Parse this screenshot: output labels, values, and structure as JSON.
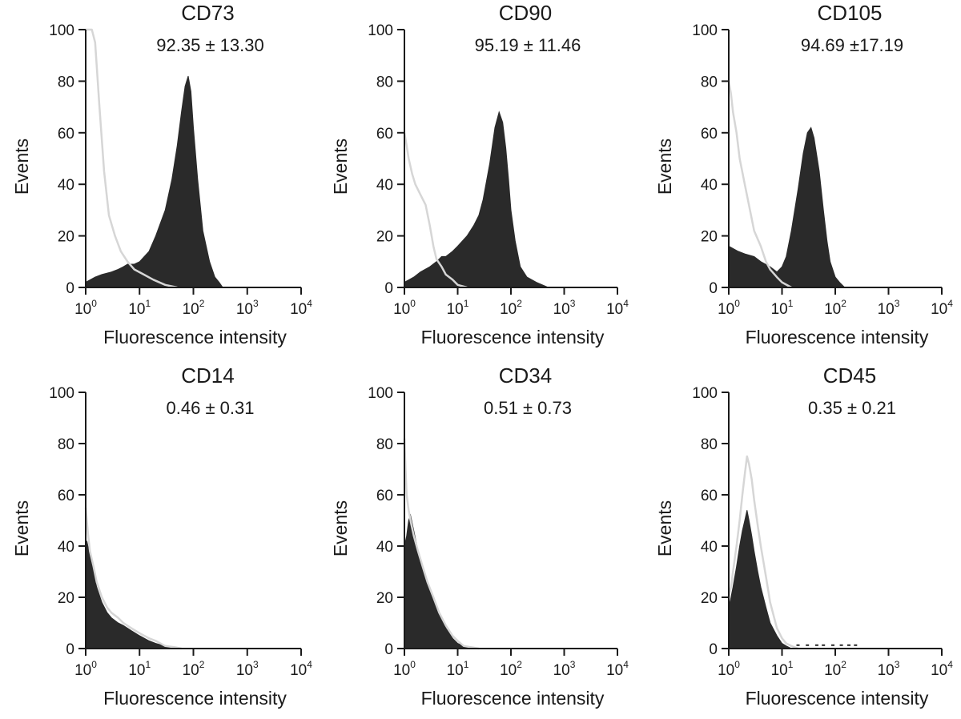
{
  "figure": {
    "xlabel": "Fluorescence intensity",
    "ylabel": "Events"
  },
  "chart_data": [
    {
      "type": "area",
      "title": "CD73",
      "stat": "92.35 ± 13.30",
      "xlabel": "Fluorescence intensity",
      "ylabel": "Events",
      "x_scale": "log",
      "xlim": [
        1,
        10000
      ],
      "ylim": [
        0,
        100
      ],
      "x_ticks": [
        "0",
        "1",
        "2",
        "3",
        "4"
      ],
      "y_ticks": [
        0,
        20,
        40,
        60,
        80,
        100
      ],
      "series": [
        {
          "role": "isotype",
          "style": "outline",
          "color": "#d6d6d6",
          "x": [
            1.0,
            1.15,
            1.3,
            1.5,
            1.8,
            2.2,
            2.7,
            3.5,
            4.5,
            6,
            8,
            12,
            18,
            30,
            50
          ],
          "y": [
            100,
            100,
            100,
            95,
            70,
            45,
            28,
            20,
            14,
            10,
            7,
            5,
            3,
            1,
            0
          ]
        },
        {
          "role": "antibody",
          "style": "filled",
          "color": "#2a2a2a",
          "x": [
            1.0,
            1.5,
            2,
            3,
            4,
            5,
            6,
            8,
            10,
            15,
            20,
            30,
            40,
            50,
            60,
            70,
            80,
            90,
            100,
            120,
            150,
            200,
            250,
            300,
            350
          ],
          "y": [
            2,
            4,
            5,
            6,
            7,
            8,
            9,
            9,
            10,
            14,
            20,
            30,
            42,
            55,
            68,
            78,
            82,
            76,
            62,
            42,
            22,
            10,
            4,
            2,
            0
          ]
        }
      ]
    },
    {
      "type": "area",
      "title": "CD90",
      "stat": "95.19 ± 11.46",
      "xlabel": "Fluorescence intensity",
      "ylabel": "Events",
      "x_scale": "log",
      "xlim": [
        1,
        10000
      ],
      "ylim": [
        0,
        100
      ],
      "x_ticks": [
        "0",
        "1",
        "2",
        "3",
        "4"
      ],
      "y_ticks": [
        0,
        20,
        40,
        60,
        80,
        100
      ],
      "series": [
        {
          "role": "isotype",
          "style": "outline",
          "color": "#d6d6d6",
          "x": [
            1.0,
            1.1,
            1.2,
            1.4,
            1.6,
            2,
            2.5,
            3,
            3.5,
            4,
            5,
            6,
            8,
            10,
            15
          ],
          "y": [
            60,
            55,
            50,
            44,
            40,
            36,
            32,
            24,
            16,
            11,
            8,
            5,
            3,
            1,
            0
          ]
        },
        {
          "role": "antibody",
          "style": "filled",
          "color": "#2a2a2a",
          "x": [
            1.0,
            1.5,
            2,
            3,
            4,
            5,
            6,
            8,
            10,
            15,
            20,
            25,
            30,
            40,
            50,
            60,
            70,
            80,
            90,
            100,
            120,
            150,
            200,
            300,
            500
          ],
          "y": [
            2,
            4,
            6,
            8,
            10,
            12,
            12,
            14,
            16,
            20,
            24,
            28,
            34,
            48,
            62,
            68,
            64,
            54,
            42,
            30,
            18,
            8,
            4,
            2,
            0
          ]
        }
      ]
    },
    {
      "type": "area",
      "title": "CD105",
      "stat": "94.69 ±17.19",
      "xlabel": "Fluorescence intensity",
      "ylabel": "Events",
      "x_scale": "log",
      "xlim": [
        1,
        10000
      ],
      "ylim": [
        0,
        100
      ],
      "x_ticks": [
        "0",
        "1",
        "2",
        "3",
        "4"
      ],
      "y_ticks": [
        0,
        20,
        40,
        60,
        80,
        100
      ],
      "series": [
        {
          "role": "isotype",
          "style": "outline",
          "color": "#d6d6d6",
          "x": [
            1.0,
            1.1,
            1.2,
            1.4,
            1.6,
            2,
            2.5,
            3,
            4,
            5,
            6,
            8,
            10,
            15
          ],
          "y": [
            80,
            75,
            68,
            60,
            50,
            40,
            30,
            22,
            16,
            10,
            7,
            4,
            2,
            0
          ]
        },
        {
          "role": "antibody",
          "style": "filled",
          "color": "#2a2a2a",
          "x": [
            1.0,
            1.5,
            2,
            3,
            4,
            6,
            8,
            10,
            12,
            15,
            20,
            25,
            30,
            35,
            40,
            50,
            60,
            70,
            80,
            100,
            120,
            150
          ],
          "y": [
            16,
            14,
            13,
            12,
            10,
            8,
            6,
            8,
            12,
            22,
            38,
            52,
            60,
            62,
            58,
            45,
            30,
            18,
            10,
            4,
            2,
            0
          ]
        }
      ]
    },
    {
      "type": "area",
      "title": "CD14",
      "stat": "0.46 ± 0.31",
      "xlabel": "Fluorescence intensity",
      "ylabel": "Events",
      "x_scale": "log",
      "xlim": [
        1,
        10000
      ],
      "ylim": [
        0,
        100
      ],
      "x_ticks": [
        "0",
        "1",
        "2",
        "3",
        "4"
      ],
      "y_ticks": [
        0,
        20,
        40,
        60,
        80,
        100
      ],
      "series": [
        {
          "role": "isotype",
          "style": "outline",
          "color": "#d6d6d6",
          "x": [
            1.0,
            1.05,
            1.1,
            1.2,
            1.4,
            1.6,
            2,
            2.5,
            3,
            4,
            5,
            7,
            10,
            15,
            20,
            30,
            45,
            60
          ],
          "y": [
            55,
            50,
            45,
            38,
            32,
            26,
            20,
            16,
            14,
            12,
            10,
            8,
            6,
            4,
            3,
            1,
            0.5,
            0
          ]
        },
        {
          "role": "antibody",
          "style": "filled",
          "color": "#2a2a2a",
          "x": [
            1.0,
            1.05,
            1.1,
            1.2,
            1.4,
            1.6,
            2,
            2.5,
            3,
            4,
            5,
            7,
            10,
            15,
            20,
            30,
            40
          ],
          "y": [
            40,
            42,
            40,
            36,
            30,
            24,
            18,
            14,
            12,
            10,
            9,
            7,
            5,
            3,
            2,
            1,
            0
          ]
        }
      ]
    },
    {
      "type": "area",
      "title": "CD34",
      "stat": "0.51 ± 0.73",
      "xlabel": "Fluorescence intensity",
      "ylabel": "Events",
      "x_scale": "log",
      "xlim": [
        1,
        10000
      ],
      "ylim": [
        0,
        100
      ],
      "x_ticks": [
        "0",
        "1",
        "2",
        "3",
        "4"
      ],
      "y_ticks": [
        0,
        20,
        40,
        60,
        80,
        100
      ],
      "series": [
        {
          "role": "isotype",
          "style": "outline",
          "color": "#d6d6d6",
          "x": [
            1.0,
            1.05,
            1.1,
            1.2,
            1.3,
            1.5,
            1.8,
            2.2,
            2.7,
            3.5,
            4.5,
            6,
            8,
            10,
            13,
            18,
            25
          ],
          "y": [
            82,
            70,
            60,
            54,
            50,
            44,
            38,
            32,
            26,
            20,
            14,
            9,
            5,
            3,
            1,
            0.5,
            0
          ]
        },
        {
          "role": "antibody",
          "style": "filled",
          "color": "#2a2a2a",
          "x": [
            1.0,
            1.1,
            1.2,
            1.3,
            1.5,
            1.8,
            2.2,
            2.7,
            3.5,
            4.5,
            6,
            8,
            10,
            13,
            18
          ],
          "y": [
            40,
            44,
            50,
            52,
            46,
            38,
            32,
            26,
            20,
            14,
            8,
            4,
            2,
            1,
            0
          ]
        }
      ]
    },
    {
      "type": "area",
      "title": "CD45",
      "stat": "0.35 ± 0.21",
      "xlabel": "Fluorescence intensity",
      "ylabel": "Events",
      "x_scale": "log",
      "xlim": [
        1,
        10000
      ],
      "ylim": [
        0,
        100
      ],
      "x_ticks": [
        "0",
        "1",
        "2",
        "3",
        "4"
      ],
      "y_ticks": [
        0,
        20,
        40,
        60,
        80,
        100
      ],
      "series": [
        {
          "role": "isotype",
          "style": "outline",
          "color": "#d6d6d6",
          "x": [
            1.0,
            1.1,
            1.2,
            1.4,
            1.6,
            1.8,
            2.0,
            2.2,
            2.4,
            2.7,
            3,
            3.5,
            4,
            5,
            6,
            8,
            10,
            12,
            15,
            20
          ],
          "y": [
            20,
            24,
            30,
            40,
            50,
            60,
            68,
            75,
            72,
            66,
            58,
            48,
            40,
            28,
            18,
            8,
            4,
            2,
            1,
            0
          ]
        },
        {
          "role": "antibody",
          "style": "filled",
          "color": "#2a2a2a",
          "x": [
            1.0,
            1.1,
            1.2,
            1.4,
            1.6,
            1.8,
            2.0,
            2.2,
            2.4,
            2.7,
            3,
            3.5,
            4,
            5,
            6,
            8,
            10,
            12,
            15
          ],
          "y": [
            16,
            20,
            24,
            32,
            40,
            46,
            50,
            54,
            50,
            44,
            38,
            30,
            24,
            16,
            10,
            5,
            2,
            1,
            0
          ]
        },
        {
          "role": "antibody-tail",
          "style": "points",
          "color": "#2a2a2a",
          "x": [
            20,
            30,
            45,
            60,
            90,
            130,
            180,
            240
          ],
          "y": [
            1,
            1,
            1,
            1,
            1,
            1,
            1,
            1
          ]
        }
      ]
    }
  ]
}
